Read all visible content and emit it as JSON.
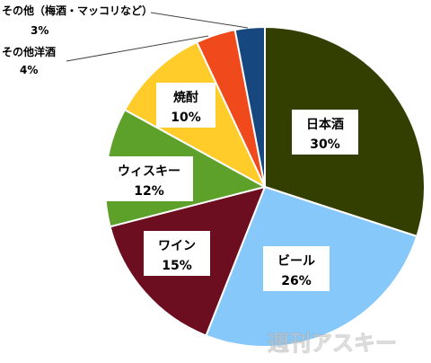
{
  "chart_data": {
    "type": "pie",
    "title": "",
    "start": "12 o'clock",
    "direction": "clockwise",
    "legend": "none",
    "slices": [
      {
        "label": "日本酒",
        "value": 30,
        "value_label": "30%",
        "color": "#333f00"
      },
      {
        "label": "ビール",
        "value": 26,
        "value_label": "26%",
        "color": "#87c8fb"
      },
      {
        "label": "ワイン",
        "value": 15,
        "value_label": "15%",
        "color": "#6c0d20"
      },
      {
        "label": "ウィスキー",
        "value": 12,
        "value_label": "12%",
        "color": "#5ea12a"
      },
      {
        "label": "焼酎",
        "value": 10,
        "value_label": "10%",
        "color": "#ffcc2a"
      },
      {
        "label": "その他洋酒",
        "value": 4,
        "value_label": "4%",
        "color": "#f0491c"
      },
      {
        "label": "その他（梅酒・マッコリなど）",
        "value": 3,
        "value_label": "3%",
        "color": "#17477f"
      }
    ]
  },
  "watermark": "週刊アスキー"
}
